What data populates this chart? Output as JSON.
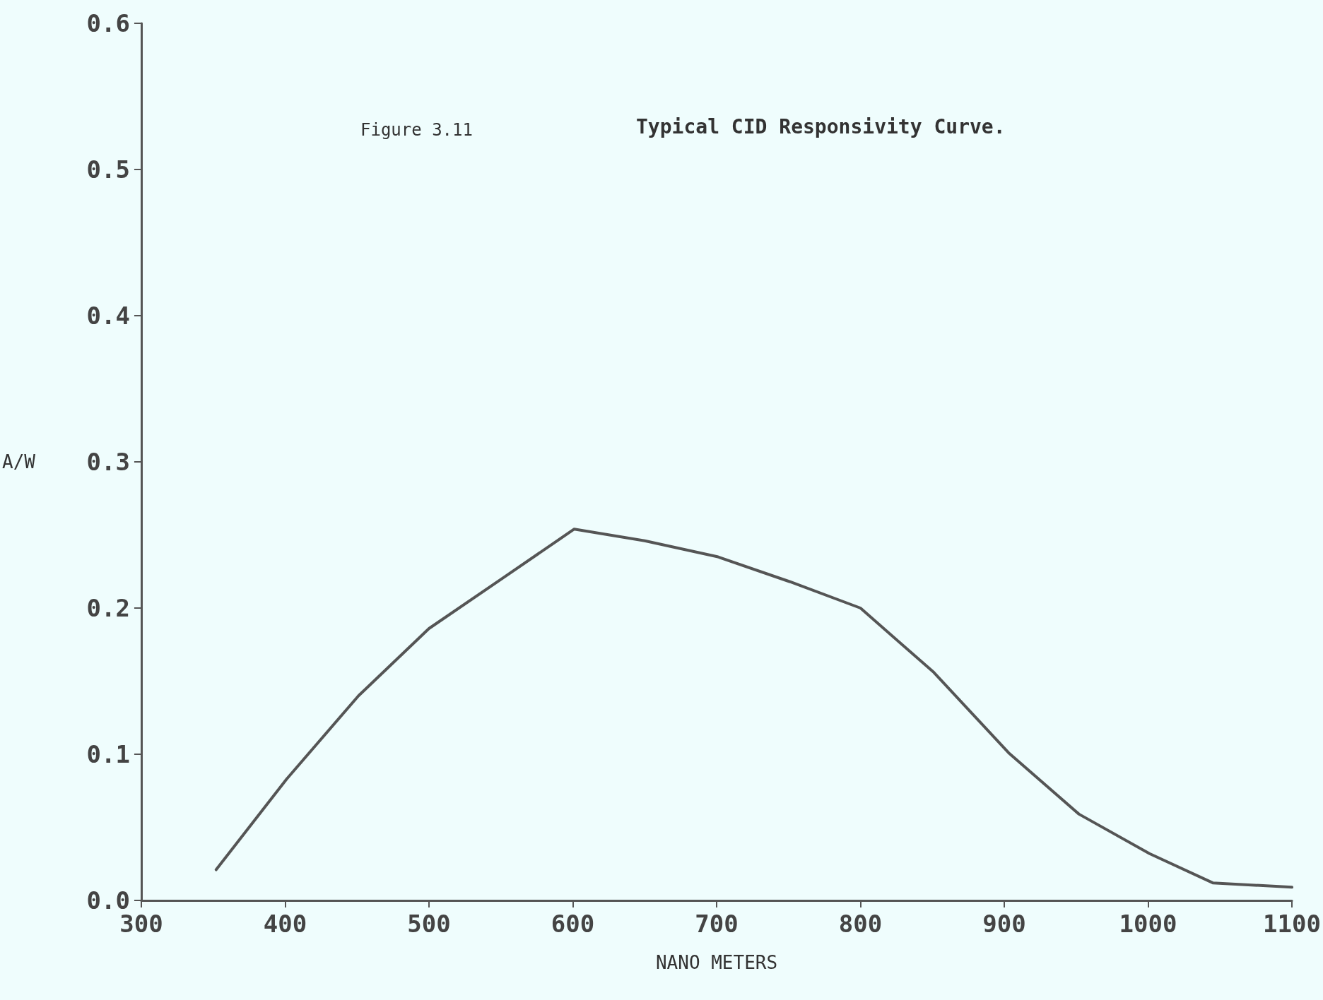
{
  "chart_data": {
    "type": "line",
    "title": "Typical CID Responsivity Curve.",
    "xlabel": "NANO METERS",
    "ylabel": "A/W",
    "annotations": [
      "Figure 3.11"
    ],
    "x": [
      352,
      401,
      451,
      500,
      552,
      601,
      650,
      701,
      751,
      800,
      851,
      903,
      952,
      1001,
      1045,
      1100
    ],
    "series": [
      {
        "color": "#555555",
        "values": [
          0.021,
          0.083,
          0.14,
          0.186,
          0.221,
          0.254,
          0.246,
          0.235,
          0.218,
          0.2,
          0.156,
          0.101,
          0.059,
          0.032,
          0.012,
          0.009
        ]
      }
    ],
    "xlim": [
      300,
      1100
    ],
    "xticks": [
      300,
      400,
      500,
      600,
      700,
      800,
      900,
      1000,
      1100
    ],
    "ylim": [
      0,
      0.6
    ],
    "yticks": [
      {
        "value": 0,
        "label": "0.0"
      },
      0.1,
      0.2,
      0.3,
      0.4,
      0.5,
      0.6
    ],
    "grid": false,
    "marker": "none",
    "line_style": "solid"
  }
}
